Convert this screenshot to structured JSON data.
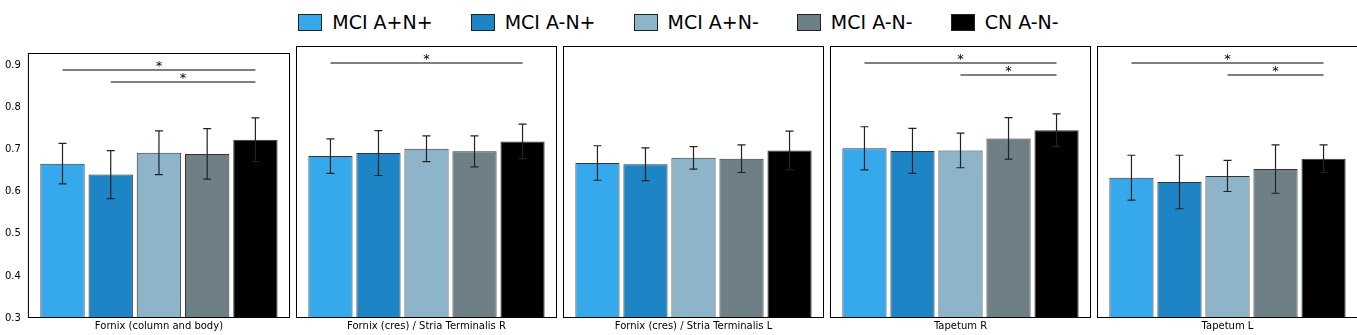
{
  "chart_data": [
    {
      "type": "bar",
      "x_label": "Fornix (column and body)",
      "categories": [
        null
      ],
      "ylim": [
        0.3,
        0.93
      ],
      "yticks": [
        0.3,
        0.4,
        0.5,
        0.6,
        0.7,
        0.8,
        0.9
      ],
      "grid": false,
      "tick_labels": "y",
      "legend": "top",
      "series": [
        {
          "name": "MCI A+N+",
          "color": "#36a9ec",
          "values": [
            0.667
          ],
          "errors": [
            0.048
          ]
        },
        {
          "name": "MCI A-N+",
          "color": "#1d84c6",
          "values": [
            0.641
          ],
          "errors": [
            0.057
          ]
        },
        {
          "name": "MCI A+N-",
          "color": "#8db4c9",
          "values": [
            0.693
          ],
          "errors": [
            0.052
          ]
        },
        {
          "name": "MCI A-N-",
          "color": "#6f7f86",
          "values": [
            0.69
          ],
          "errors": [
            0.06
          ]
        },
        {
          "name": "CN A-N-",
          "color": "#000000",
          "values": [
            0.724
          ],
          "errors": [
            0.052
          ]
        }
      ],
      "significance": [
        {
          "from": 0,
          "to": 4,
          "label": "*"
        },
        {
          "from": 1,
          "to": 4,
          "label": "*"
        }
      ]
    },
    {
      "type": "bar",
      "x_label": "Fornix (cres) / Stria Terminalis R",
      "categories": [
        null
      ],
      "ylim": [
        0.3,
        0.93
      ],
      "yticks": [
        0.3,
        0.4,
        0.5,
        0.6,
        0.7,
        0.8,
        0.9
      ],
      "grid": false,
      "tick_labels": false,
      "series": [
        {
          "name": "MCI A+N+",
          "color": "#36a9ec",
          "values": [
            0.675
          ],
          "errors": [
            0.04
          ]
        },
        {
          "name": "MCI A-N+",
          "color": "#1d84c6",
          "values": [
            0.682
          ],
          "errors": [
            0.052
          ]
        },
        {
          "name": "MCI A+N-",
          "color": "#8db4c9",
          "values": [
            0.692
          ],
          "errors": [
            0.03
          ]
        },
        {
          "name": "MCI A-N-",
          "color": "#6f7f86",
          "values": [
            0.686
          ],
          "errors": [
            0.036
          ]
        },
        {
          "name": "CN A-N-",
          "color": "#000000",
          "values": [
            0.709
          ],
          "errors": [
            0.04
          ]
        }
      ],
      "significance": [
        {
          "from": 0,
          "to": 4,
          "label": "*"
        }
      ]
    },
    {
      "type": "bar",
      "x_label": "Fornix (cres) / Stria Terminalis L",
      "categories": [
        null
      ],
      "ylim": [
        0.3,
        0.93
      ],
      "yticks": [
        0.3,
        0.4,
        0.5,
        0.6,
        0.7,
        0.8,
        0.9
      ],
      "grid": false,
      "tick_labels": false,
      "series": [
        {
          "name": "MCI A+N+",
          "color": "#36a9ec",
          "values": [
            0.659
          ],
          "errors": [
            0.04
          ]
        },
        {
          "name": "MCI A-N+",
          "color": "#1d84c6",
          "values": [
            0.656
          ],
          "errors": [
            0.038
          ]
        },
        {
          "name": "MCI A+N-",
          "color": "#8db4c9",
          "values": [
            0.671
          ],
          "errors": [
            0.026
          ]
        },
        {
          "name": "MCI A-N-",
          "color": "#6f7f86",
          "values": [
            0.669
          ],
          "errors": [
            0.032
          ]
        },
        {
          "name": "CN A-N-",
          "color": "#000000",
          "values": [
            0.688
          ],
          "errors": [
            0.045
          ]
        }
      ],
      "significance": []
    },
    {
      "type": "bar",
      "x_label": "Tapetum R",
      "categories": [
        null
      ],
      "ylim": [
        0.3,
        0.93
      ],
      "yticks": [
        0.3,
        0.4,
        0.5,
        0.6,
        0.7,
        0.8,
        0.9
      ],
      "grid": false,
      "tick_labels": false,
      "series": [
        {
          "name": "MCI A+N+",
          "color": "#36a9ec",
          "values": [
            0.693
          ],
          "errors": [
            0.05
          ]
        },
        {
          "name": "MCI A-N+",
          "color": "#1d84c6",
          "values": [
            0.687
          ],
          "errors": [
            0.052
          ]
        },
        {
          "name": "MCI A+N-",
          "color": "#8db4c9",
          "values": [
            0.688
          ],
          "errors": [
            0.04
          ]
        },
        {
          "name": "MCI A-N-",
          "color": "#6f7f86",
          "values": [
            0.716
          ],
          "errors": [
            0.048
          ]
        },
        {
          "name": "CN A-N-",
          "color": "#000000",
          "values": [
            0.735
          ],
          "errors": [
            0.038
          ]
        }
      ],
      "significance": [
        {
          "from": 0,
          "to": 4,
          "label": "*"
        },
        {
          "from": 2,
          "to": 4,
          "label": "*"
        }
      ]
    },
    {
      "type": "bar",
      "x_label": "Tapetum L",
      "categories": [
        null
      ],
      "ylim": [
        0.3,
        0.93
      ],
      "yticks": [
        0.3,
        0.4,
        0.5,
        0.6,
        0.7,
        0.8,
        0.9
      ],
      "grid": false,
      "tick_labels": false,
      "series": [
        {
          "name": "MCI A+N+",
          "color": "#36a9ec",
          "values": [
            0.625
          ],
          "errors": [
            0.052
          ]
        },
        {
          "name": "MCI A-N+",
          "color": "#1d84c6",
          "values": [
            0.615
          ],
          "errors": [
            0.062
          ]
        },
        {
          "name": "MCI A+N-",
          "color": "#8db4c9",
          "values": [
            0.629
          ],
          "errors": [
            0.036
          ]
        },
        {
          "name": "MCI A-N-",
          "color": "#6f7f86",
          "values": [
            0.645
          ],
          "errors": [
            0.056
          ]
        },
        {
          "name": "CN A-N-",
          "color": "#000000",
          "values": [
            0.669
          ],
          "errors": [
            0.032
          ]
        }
      ],
      "significance": [
        {
          "from": 0,
          "to": 4,
          "label": "*"
        },
        {
          "from": 2,
          "to": 4,
          "label": "*"
        }
      ]
    }
  ]
}
